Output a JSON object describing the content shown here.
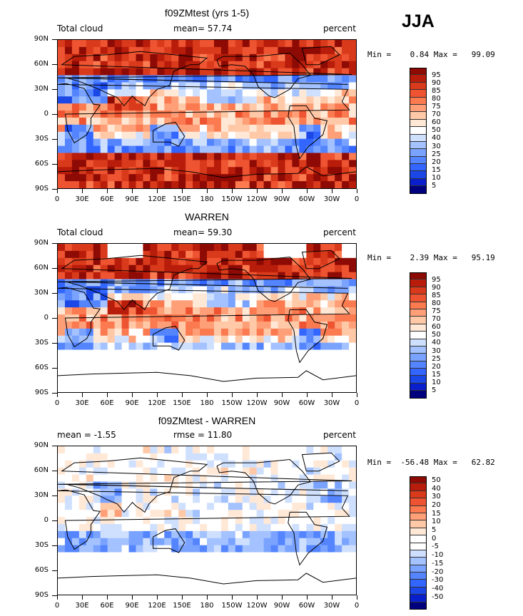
{
  "season": "JJA",
  "palettes": {
    "cloud": [
      "#00007f",
      "#0a1fcc",
      "#1a47e6",
      "#3366ff",
      "#5485ff",
      "#7aa3ff",
      "#a3c2ff",
      "#cfe0ff",
      "#ffffff",
      "#ffe8d6",
      "#ffc9a8",
      "#ff9f78",
      "#fb7a50",
      "#ee5431",
      "#d93a1b",
      "#b81c0a",
      "#8e0a04"
    ],
    "diff": [
      "#00007f",
      "#0a1fcc",
      "#1a47e6",
      "#3366ff",
      "#5485ff",
      "#7aa3ff",
      "#a3c2ff",
      "#cfe0ff",
      "#ffffff",
      "#ffffff",
      "#ffe8d6",
      "#ffc9a8",
      "#ff9f78",
      "#fb7a50",
      "#ee5431",
      "#d93a1b",
      "#b81c0a",
      "#8e0a04"
    ]
  },
  "panels": [
    {
      "title": "f09ZMtest (yrs 1-5)",
      "left_label": "Total cloud",
      "center_label": "mean=   57.74",
      "right_label": "percent",
      "minmax": "Min =    0.84 Max =   99.09",
      "colorbar_labels": [
        "95",
        "90",
        "85",
        "80",
        "75",
        "70",
        "60",
        "50",
        "40",
        "30",
        "25",
        "20",
        "15",
        "10",
        "5"
      ]
    },
    {
      "title": "WARREN",
      "left_label": "Total cloud",
      "center_label": "mean=   59.30",
      "right_label": "percent",
      "minmax": "Min =    2.39 Max =   95.19",
      "colorbar_labels": [
        "95",
        "90",
        "85",
        "80",
        "75",
        "70",
        "60",
        "50",
        "40",
        "30",
        "25",
        "20",
        "15",
        "10",
        "5"
      ]
    },
    {
      "title": "f09ZMtest - WARREN",
      "left_label": "mean =   -1.55",
      "center_label": "rmse =   11.80",
      "right_label": "percent",
      "minmax": "Min =  -56.48 Max =   62.82",
      "colorbar_labels": [
        "50",
        "40",
        "30",
        "20",
        "15",
        "10",
        "5",
        "0",
        "-5",
        "-10",
        "-15",
        "-20",
        "-30",
        "-40",
        "-50"
      ]
    }
  ],
  "chart_data": [
    {
      "type": "heatmap",
      "title": "f09ZMtest (yrs 1-5)",
      "variable": "Total cloud",
      "units": "percent",
      "mean": 57.74,
      "min": 0.84,
      "max": 99.09,
      "x_ticks": [
        "0",
        "30E",
        "60E",
        "90E",
        "120E",
        "150E",
        "180",
        "150W",
        "120W",
        "90W",
        "60W",
        "30W",
        "0"
      ],
      "y_ticks": [
        "90N",
        "60N",
        "30N",
        "0",
        "30S",
        "60S",
        "90S"
      ],
      "xlim": [
        0,
        360
      ],
      "ylim": [
        -90,
        90
      ],
      "levels": [
        5,
        10,
        15,
        20,
        25,
        30,
        40,
        50,
        60,
        70,
        75,
        80,
        85,
        90,
        95
      ]
    },
    {
      "type": "heatmap",
      "title": "WARREN",
      "variable": "Total cloud",
      "units": "percent",
      "mean": 59.3,
      "min": 2.39,
      "max": 95.19,
      "x_ticks": [
        "0",
        "30E",
        "60E",
        "90E",
        "120E",
        "150E",
        "180",
        "150W",
        "120W",
        "90W",
        "60W",
        "30W",
        "0"
      ],
      "y_ticks": [
        "90N",
        "60N",
        "30N",
        "0",
        "30S",
        "60S",
        "90S"
      ],
      "xlim": [
        0,
        360
      ],
      "ylim": [
        -90,
        90
      ],
      "levels": [
        5,
        10,
        15,
        20,
        25,
        30,
        40,
        50,
        60,
        70,
        75,
        80,
        85,
        90,
        95
      ]
    },
    {
      "type": "heatmap",
      "title": "f09ZMtest - WARREN",
      "units": "percent",
      "mean": -1.55,
      "rmse": 11.8,
      "min": -56.48,
      "max": 62.82,
      "x_ticks": [
        "0",
        "30E",
        "60E",
        "90E",
        "120E",
        "150E",
        "180",
        "150W",
        "120W",
        "90W",
        "60W",
        "30W",
        "0"
      ],
      "y_ticks": [
        "90N",
        "60N",
        "30N",
        "0",
        "30S",
        "60S",
        "90S"
      ],
      "xlim": [
        0,
        360
      ],
      "ylim": [
        -90,
        90
      ],
      "levels": [
        -50,
        -40,
        -30,
        -20,
        -15,
        -10,
        -5,
        0,
        5,
        10,
        15,
        20,
        30,
        40,
        50
      ]
    }
  ]
}
